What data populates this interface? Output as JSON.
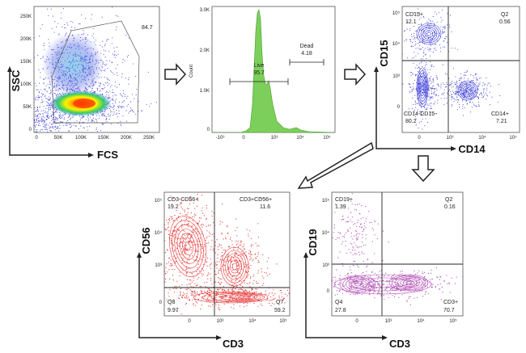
{
  "colors": {
    "scatter_blue": "#3b3bd9",
    "hist_green": "#7ccf5a",
    "red_panel": "#e83a3a",
    "purple_panel": "#b04fb4",
    "axis": "#222222"
  },
  "chart_data": [
    {
      "id": "fsc-ssc",
      "type": "scatter",
      "xlabel": "FCS",
      "ylabel": "SSC",
      "x_ticks": [
        "0",
        "50K",
        "100K",
        "150K",
        "200K",
        "250K"
      ],
      "y_ticks": [
        "0",
        "50K",
        "100K",
        "150K",
        "200K",
        "250K"
      ],
      "gate_value": "84.7"
    },
    {
      "id": "live-dead",
      "type": "area",
      "ylabel": "Count",
      "x_ticks": [
        "-10³",
        "0",
        "10³",
        "10⁴",
        "10⁵"
      ],
      "y_ticks": [
        "0",
        "1.0K",
        "2.0K",
        "3.0K"
      ],
      "gates": [
        {
          "name": "Live",
          "value": "95.7"
        },
        {
          "name": "Dead",
          "value": "4.18"
        }
      ]
    },
    {
      "id": "cd14-cd15",
      "type": "scatter",
      "xlabel": "CD14",
      "ylabel": "CD15",
      "x_ticks": [
        "0",
        "10³",
        "10⁴",
        "10⁵"
      ],
      "y_ticks": [
        "0",
        "10³",
        "10⁴",
        "10⁵"
      ],
      "quadrants": [
        {
          "name": "CD15+",
          "value": "12.1"
        },
        {
          "name": "Q2",
          "value": "0.56"
        },
        {
          "name": "CD14-CD15-",
          "value": "80.2"
        },
        {
          "name": "CD14+",
          "value": "7.21"
        }
      ]
    },
    {
      "id": "cd3-cd56",
      "type": "scatter",
      "xlabel": "CD3",
      "ylabel": "CD56",
      "x_ticks": [
        "0",
        "10³",
        "10⁴",
        "10⁵"
      ],
      "y_ticks": [
        "0",
        "10³",
        "10⁴",
        "10⁵"
      ],
      "quadrants": [
        {
          "name": "CD3-CD56+",
          "value": "19.2"
        },
        {
          "name": "CD3+CD56+",
          "value": "11.6"
        },
        {
          "name": "Q8",
          "value": "9.97"
        },
        {
          "name": "Q7",
          "value": "59.2"
        }
      ]
    },
    {
      "id": "cd3-cd19",
      "type": "scatter",
      "xlabel": "CD3",
      "ylabel": "CD19",
      "x_ticks": [
        "0",
        "10³",
        "10⁴",
        "10⁵"
      ],
      "y_ticks": [
        "0",
        "10³",
        "10⁴",
        "10⁵"
      ],
      "quadrants": [
        {
          "name": "CD19+",
          "value": "1.39"
        },
        {
          "name": "Q2",
          "value": "0.16"
        },
        {
          "name": "Q4",
          "value": "27.8"
        },
        {
          "name": "CD3+",
          "value": "70.7"
        }
      ]
    }
  ]
}
